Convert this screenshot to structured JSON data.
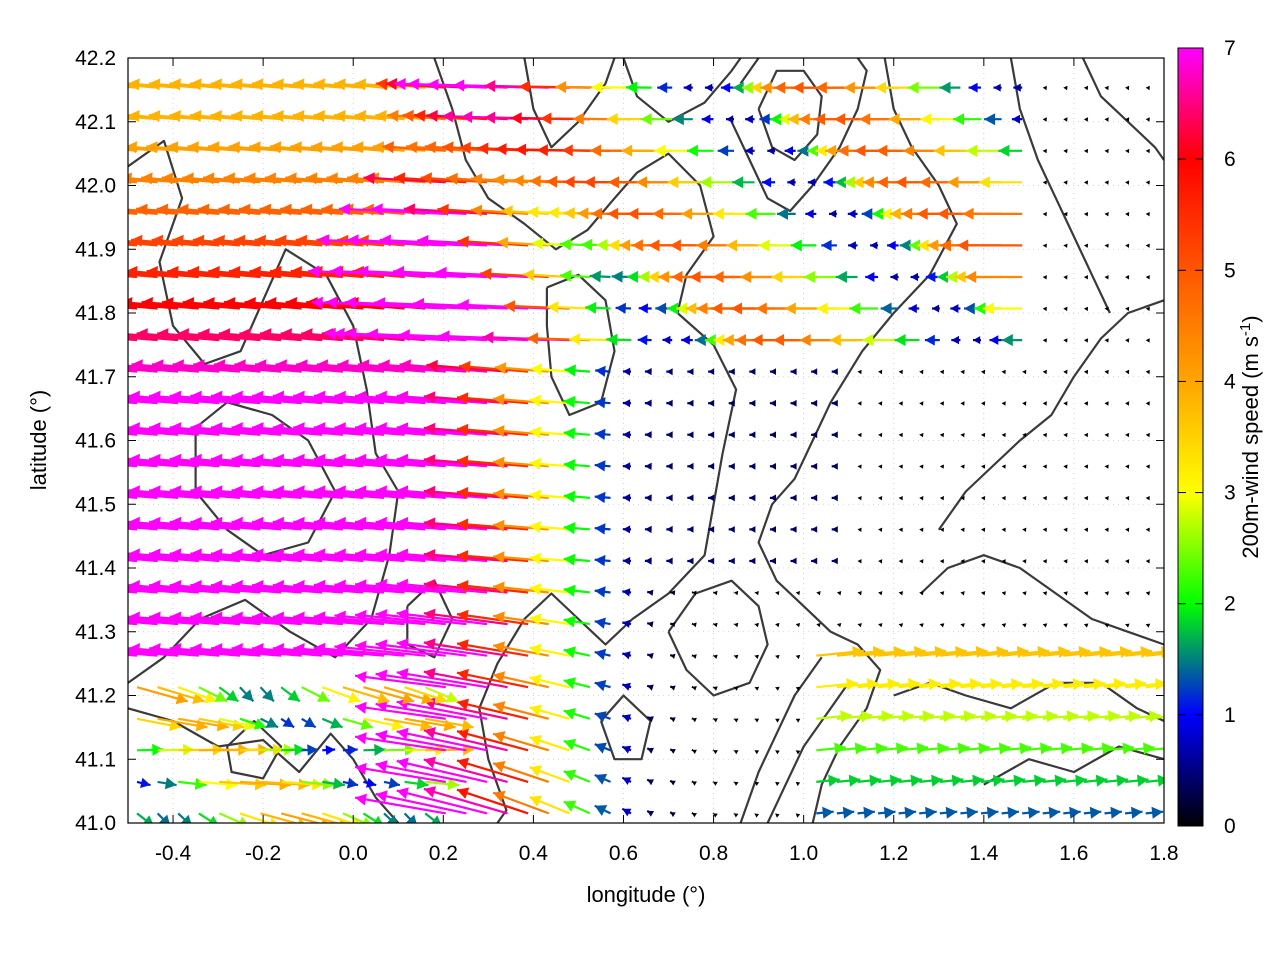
{
  "chart_data": {
    "type": "vector-field",
    "xlabel": "longitude (°)",
    "ylabel": "latitude (°)",
    "colorbar": {
      "label_main": "200m-wind speed (m s",
      "label_sup": "-1",
      "label_end": ")",
      "range": [
        0,
        7
      ],
      "ticks": [
        "0",
        "1",
        "2",
        "3",
        "4",
        "5",
        "6",
        "7"
      ],
      "stops": [
        {
          "v": 0.0,
          "color": "#000000"
        },
        {
          "v": 1.0,
          "color": "#0000ff"
        },
        {
          "v": 2.0,
          "color": "#00ff00"
        },
        {
          "v": 3.0,
          "color": "#ffff00"
        },
        {
          "v": 4.0,
          "color": "#ffa500"
        },
        {
          "v": 5.0,
          "color": "#ff5500"
        },
        {
          "v": 6.0,
          "color": "#ff0000"
        },
        {
          "v": 7.0,
          "color": "#ff00ff"
        }
      ]
    },
    "xlim": [
      -0.5,
      1.8
    ],
    "ylim": [
      41.0,
      42.2
    ],
    "xticks": [
      "-0.4",
      "-0.2",
      "0.0",
      "0.2",
      "0.4",
      "0.6",
      "0.8",
      "1.0",
      "1.2",
      "1.4",
      "1.6",
      "1.8"
    ],
    "xtick_values": [
      -0.4,
      -0.2,
      0.0,
      0.2,
      0.4,
      0.6,
      0.8,
      1.0,
      1.2,
      1.4,
      1.6,
      1.8
    ],
    "yticks": [
      "41.0",
      "41.1",
      "41.2",
      "41.3",
      "41.4",
      "41.5",
      "41.6",
      "41.7",
      "41.8",
      "41.9",
      "42.0",
      "42.1",
      "42.2"
    ],
    "ytick_values": [
      41.0,
      41.1,
      41.2,
      41.3,
      41.4,
      41.5,
      41.6,
      41.7,
      41.8,
      41.9,
      42.0,
      42.1,
      42.2
    ],
    "grid": true,
    "contours": [
      [
        [
          -0.5,
          42.03
        ],
        [
          -0.42,
          42.07
        ],
        [
          -0.38,
          41.98
        ],
        [
          -0.43,
          41.88
        ],
        [
          -0.4,
          41.78
        ],
        [
          -0.33,
          41.72
        ],
        [
          -0.25,
          41.74
        ],
        [
          -0.2,
          41.82
        ],
        [
          -0.15,
          41.9
        ],
        [
          -0.06,
          41.86
        ],
        [
          0.0,
          41.78
        ],
        [
          0.03,
          41.68
        ],
        [
          0.05,
          41.58
        ],
        [
          0.1,
          41.52
        ],
        [
          0.08,
          41.42
        ],
        [
          0.04,
          41.32
        ],
        [
          -0.04,
          41.26
        ],
        [
          -0.14,
          41.3
        ],
        [
          -0.24,
          41.35
        ],
        [
          -0.34,
          41.32
        ],
        [
          -0.42,
          41.26
        ],
        [
          -0.5,
          41.22
        ]
      ],
      [
        [
          -0.35,
          41.62
        ],
        [
          -0.28,
          41.66
        ],
        [
          -0.18,
          41.64
        ],
        [
          -0.1,
          41.6
        ],
        [
          -0.04,
          41.52
        ],
        [
          -0.1,
          41.44
        ],
        [
          -0.2,
          41.42
        ],
        [
          -0.28,
          41.46
        ],
        [
          -0.35,
          41.52
        ],
        [
          -0.35,
          41.62
        ]
      ],
      [
        [
          -0.5,
          41.18
        ],
        [
          -0.4,
          41.16
        ],
        [
          -0.3,
          41.12
        ],
        [
          -0.2,
          41.13
        ],
        [
          -0.12,
          41.08
        ],
        [
          -0.05,
          41.14
        ],
        [
          0.0,
          41.1
        ],
        [
          0.05,
          41.04
        ],
        [
          0.1,
          41.0
        ]
      ],
      [
        [
          -0.28,
          41.12
        ],
        [
          -0.22,
          41.16
        ],
        [
          -0.16,
          41.12
        ],
        [
          -0.2,
          41.07
        ],
        [
          -0.27,
          41.08
        ],
        [
          -0.28,
          41.12
        ]
      ],
      [
        [
          0.18,
          42.2
        ],
        [
          0.22,
          42.12
        ],
        [
          0.25,
          42.04
        ],
        [
          0.3,
          41.98
        ],
        [
          0.38,
          41.94
        ],
        [
          0.45,
          41.9
        ],
        [
          0.52,
          41.93
        ],
        [
          0.58,
          41.98
        ],
        [
          0.63,
          42.02
        ],
        [
          0.7,
          42.05
        ],
        [
          0.77,
          42.0
        ],
        [
          0.8,
          41.92
        ],
        [
          0.74,
          41.86
        ],
        [
          0.72,
          41.8
        ],
        [
          0.8,
          41.75
        ],
        [
          0.85,
          41.68
        ],
        [
          0.82,
          41.58
        ],
        [
          0.8,
          41.5
        ],
        [
          0.78,
          41.42
        ],
        [
          0.7,
          41.36
        ],
        [
          0.62,
          41.32
        ],
        [
          0.56,
          41.28
        ],
        [
          0.5,
          41.32
        ],
        [
          0.44,
          41.36
        ],
        [
          0.38,
          41.32
        ],
        [
          0.32,
          41.25
        ],
        [
          0.28,
          41.18
        ],
        [
          0.3,
          41.1
        ],
        [
          0.34,
          41.02
        ],
        [
          0.32,
          41.0
        ]
      ],
      [
        [
          0.43,
          41.84
        ],
        [
          0.5,
          41.86
        ],
        [
          0.56,
          41.82
        ],
        [
          0.58,
          41.74
        ],
        [
          0.55,
          41.66
        ],
        [
          0.48,
          41.64
        ],
        [
          0.44,
          41.7
        ],
        [
          0.43,
          41.78
        ],
        [
          0.43,
          41.84
        ]
      ],
      [
        [
          0.6,
          42.2
        ],
        [
          0.63,
          42.14
        ],
        [
          0.7,
          42.1
        ],
        [
          0.78,
          42.13
        ],
        [
          0.84,
          42.18
        ],
        [
          0.86,
          42.2
        ]
      ],
      [
        [
          0.86,
          42.16
        ],
        [
          0.9,
          42.2
        ]
      ],
      [
        [
          0.84,
          42.1
        ],
        [
          0.88,
          42.04
        ],
        [
          0.92,
          41.98
        ],
        [
          0.97,
          41.96
        ],
        [
          1.02,
          42.0
        ],
        [
          1.08,
          42.06
        ],
        [
          1.12,
          42.12
        ],
        [
          1.14,
          42.18
        ],
        [
          1.12,
          42.2
        ]
      ],
      [
        [
          0.9,
          42.12
        ],
        [
          0.93,
          42.06
        ],
        [
          0.98,
          42.04
        ],
        [
          1.03,
          42.08
        ],
        [
          1.04,
          42.14
        ],
        [
          1.0,
          42.18
        ],
        [
          0.94,
          42.18
        ],
        [
          0.9,
          42.12
        ]
      ],
      [
        [
          1.18,
          42.2
        ],
        [
          1.2,
          42.12
        ],
        [
          1.24,
          42.06
        ],
        [
          1.3,
          42.0
        ],
        [
          1.34,
          41.94
        ],
        [
          1.28,
          41.86
        ],
        [
          1.2,
          41.8
        ],
        [
          1.13,
          41.74
        ],
        [
          1.06,
          41.66
        ],
        [
          1.02,
          41.6
        ],
        [
          0.98,
          41.54
        ],
        [
          0.93,
          41.5
        ],
        [
          0.9,
          41.44
        ],
        [
          0.94,
          41.38
        ],
        [
          1.0,
          41.34
        ],
        [
          1.06,
          41.3
        ],
        [
          1.12,
          41.28
        ],
        [
          1.17,
          41.24
        ],
        [
          1.14,
          41.18
        ],
        [
          1.08,
          41.12
        ],
        [
          1.04,
          41.06
        ],
        [
          1.02,
          41.0
        ]
      ],
      [
        [
          0.92,
          41.0
        ],
        [
          0.96,
          41.06
        ],
        [
          1.0,
          41.12
        ],
        [
          1.06,
          41.18
        ],
        [
          1.1,
          41.22
        ]
      ],
      [
        [
          0.86,
          41.0
        ],
        [
          0.9,
          41.08
        ],
        [
          0.94,
          41.14
        ],
        [
          0.98,
          41.2
        ],
        [
          1.04,
          41.26
        ]
      ],
      [
        [
          0.7,
          41.3
        ],
        [
          0.76,
          41.36
        ],
        [
          0.84,
          41.38
        ],
        [
          0.9,
          41.34
        ],
        [
          0.92,
          41.28
        ],
        [
          0.88,
          41.22
        ],
        [
          0.8,
          41.2
        ],
        [
          0.74,
          41.24
        ],
        [
          0.7,
          41.3
        ]
      ],
      [
        [
          1.3,
          41.46
        ],
        [
          1.36,
          41.52
        ],
        [
          1.42,
          41.56
        ],
        [
          1.48,
          41.6
        ],
        [
          1.55,
          41.64
        ],
        [
          1.6,
          41.7
        ],
        [
          1.66,
          41.76
        ],
        [
          1.72,
          41.8
        ],
        [
          1.8,
          41.82
        ]
      ],
      [
        [
          1.26,
          41.36
        ],
        [
          1.32,
          41.4
        ],
        [
          1.4,
          41.42
        ],
        [
          1.48,
          41.4
        ],
        [
          1.56,
          41.36
        ],
        [
          1.64,
          41.32
        ],
        [
          1.72,
          41.3
        ],
        [
          1.8,
          41.28
        ]
      ],
      [
        [
          1.2,
          41.2
        ],
        [
          1.28,
          41.22
        ],
        [
          1.36,
          41.2
        ],
        [
          1.46,
          41.18
        ],
        [
          1.56,
          41.22
        ],
        [
          1.66,
          41.22
        ],
        [
          1.74,
          41.18
        ],
        [
          1.8,
          41.16
        ]
      ],
      [
        [
          1.46,
          42.2
        ],
        [
          1.48,
          42.12
        ],
        [
          1.52,
          42.04
        ],
        [
          1.56,
          41.98
        ],
        [
          1.6,
          41.92
        ],
        [
          1.64,
          41.86
        ],
        [
          1.68,
          41.8
        ]
      ],
      [
        [
          1.62,
          42.2
        ],
        [
          1.66,
          42.14
        ],
        [
          1.72,
          42.1
        ],
        [
          1.78,
          42.06
        ],
        [
          1.8,
          42.04
        ]
      ],
      [
        [
          1.4,
          41.06
        ],
        [
          1.5,
          41.1
        ],
        [
          1.6,
          41.08
        ],
        [
          1.7,
          41.12
        ],
        [
          1.8,
          41.1
        ]
      ],
      [
        [
          0.38,
          42.2
        ],
        [
          0.4,
          42.12
        ],
        [
          0.44,
          42.06
        ],
        [
          0.5,
          42.1
        ],
        [
          0.56,
          42.16
        ],
        [
          0.58,
          42.2
        ]
      ],
      [
        [
          0.12,
          41.34
        ],
        [
          0.18,
          41.38
        ],
        [
          0.22,
          41.32
        ],
        [
          0.18,
          41.26
        ],
        [
          0.12,
          41.28
        ],
        [
          0.12,
          41.34
        ]
      ],
      [
        [
          0.55,
          41.16
        ],
        [
          0.6,
          41.2
        ],
        [
          0.66,
          41.16
        ],
        [
          0.64,
          41.1
        ],
        [
          0.58,
          41.1
        ],
        [
          0.55,
          41.16
        ]
      ]
    ]
  }
}
